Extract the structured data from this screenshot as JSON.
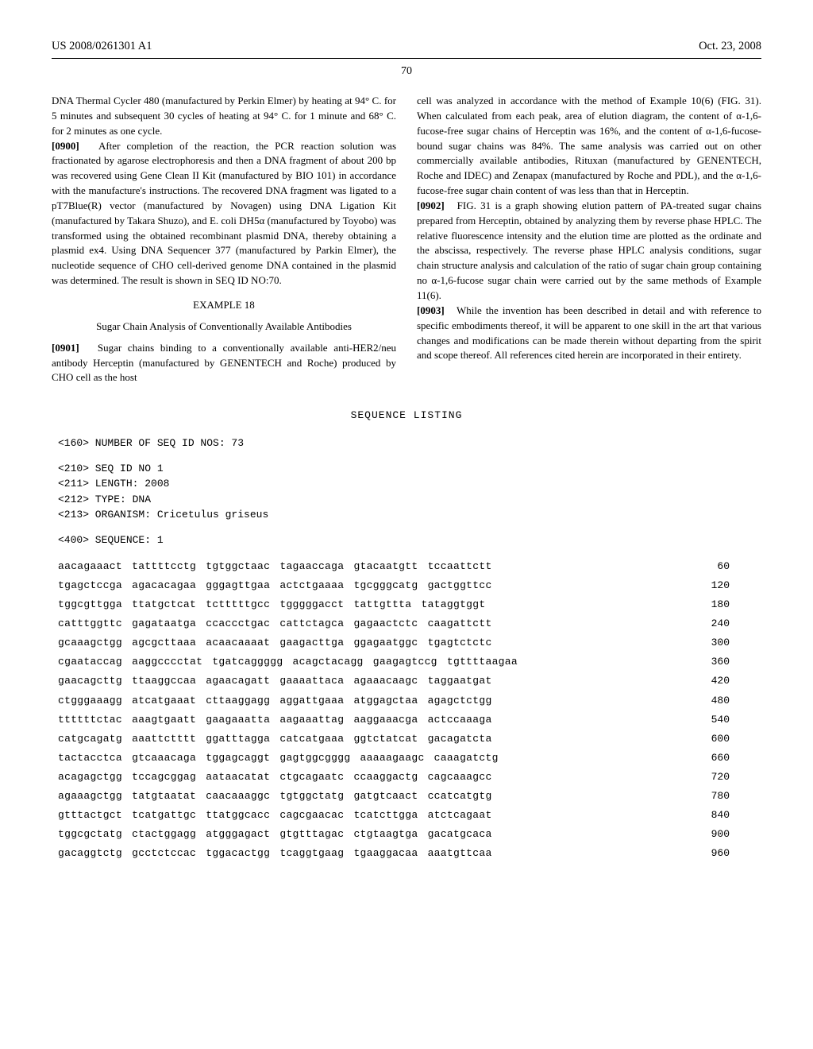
{
  "header": {
    "pub_number": "US 2008/0261301 A1",
    "pub_date": "Oct. 23, 2008"
  },
  "page_number": "70",
  "left_col": {
    "p1": "DNA Thermal Cycler 480 (manufactured by Perkin Elmer) by heating at 94° C. for 5 minutes and subsequent 30 cycles of heating at 94° C. for 1 minute and 68° C. for 2 minutes as one cycle.",
    "p2_num": "[0900]",
    "p2": "After completion of the reaction, the PCR reaction solution was fractionated by agarose electrophoresis and then a DNA fragment of about 200 bp was recovered using Gene Clean II Kit (manufactured by BIO 101) in accordance with the manufacture's instructions. The recovered DNA fragment was ligated to a pT7Blue(R) vector (manufactured by Novagen) using DNA Ligation Kit (manufactured by Takara Shuzo), and E. coli DH5α (manufactured by Toyobo) was transformed using the obtained recombinant plasmid DNA, thereby obtaining a plasmid ex4. Using DNA Sequencer 377 (manufactured by Parkin Elmer), the nucleotide sequence of CHO cell-derived genome DNA contained in the plasmid was determined. The result is shown in SEQ ID NO:70.",
    "example_heading": "EXAMPLE 18",
    "example_sub": "Sugar Chain Analysis of Conventionally Available Antibodies",
    "p3_num": "[0901]",
    "p3": "Sugar chains binding to a conventionally available anti-HER2/neu antibody Herceptin (manufactured by GENENTECH and Roche) produced by CHO cell as the host"
  },
  "right_col": {
    "p1": "cell was analyzed in accordance with the method of Example 10(6) (FIG. 31). When calculated from each peak, area of elution diagram, the content of α-1,6-fucose-free sugar chains of Herceptin was 16%, and the content of α-1,6-fucose-bound sugar chains was 84%. The same analysis was carried out on other commercially available antibodies, Rituxan (manufactured by GENENTECH, Roche and IDEC) and Zenapax (manufactured by Roche and PDL), and the α-1,6-fucose-free sugar chain content of was less than that in Herceptin.",
    "p2_num": "[0902]",
    "p2": "FIG. 31 is a graph showing elution pattern of PA-treated sugar chains prepared from Herceptin, obtained by analyzing them by reverse phase HPLC. The relative fluorescence intensity and the elution time are plotted as the ordinate and the abscissa, respectively. The reverse phase HPLC analysis conditions, sugar chain structure analysis and calculation of the ratio of sugar chain group containing no α-1,6-fucose sugar chain were carried out by the same methods of Example 11(6).",
    "p3_num": "[0903]",
    "p3": "While the invention has been described in detail and with reference to specific embodiments thereof, it will be apparent to one skill in the art that various changes and modifications can be made therein without departing from the spirit and scope thereof. All references cited herein are incorporated in their entirety."
  },
  "sequence_listing": {
    "title": "SEQUENCE LISTING",
    "meta1": "<160> NUMBER OF SEQ ID NOS: 73",
    "meta2": "<210> SEQ ID NO 1",
    "meta3": "<211> LENGTH: 2008",
    "meta4": "<212> TYPE: DNA",
    "meta5": "<213> ORGANISM: Cricetulus griseus",
    "meta6": "<400> SEQUENCE: 1",
    "lines": [
      {
        "seq": "aacagaaact tattttcctg tgtggctaac tagaaccaga gtacaatgtt tccaattctt",
        "num": "60"
      },
      {
        "seq": "tgagctccga agacacagaa gggagttgaa actctgaaaa tgcgggcatg gactggttcc",
        "num": "120"
      },
      {
        "seq": "tggcgttgga ttatgctcat tctttttgcc tgggggacct tattgttta tataggtggt",
        "num": "180"
      },
      {
        "seq": "catttggttc gagataatga ccaccctgac cattctagca gagaactctc caagattctt",
        "num": "240"
      },
      {
        "seq": "gcaaagctgg agcgcttaaa acaacaaaat gaagacttga ggagaatggc tgagtctctc",
        "num": "300"
      },
      {
        "seq": "cgaataccag aaggcccctat tgatcaggggg acagctacagg gaagagtccg tgttttaagaa",
        "num": "360"
      },
      {
        "seq": "gaacagcttg ttaaggccaa agaacagatt gaaaattaca agaaacaagc taggaatgat",
        "num": "420"
      },
      {
        "seq": "ctgggaaagg atcatgaaat cttaaggagg aggattgaaa atggagctaa agagctctgg",
        "num": "480"
      },
      {
        "seq": "ttttttctac aaagtgaatt gaagaaatta aagaaattag aaggaaacga actccaaaga",
        "num": "540"
      },
      {
        "seq": "catgcagatg aaattctttt ggatttagga catcatgaaa ggtctatcat gacagatcta",
        "num": "600"
      },
      {
        "seq": "tactacctca gtcaaacaga tggagcaggt gagtggcgggg aaaaagaagc caaagatctg",
        "num": "660"
      },
      {
        "seq": "acagagctgg tccagcggag aataacatat ctgcagaatc ccaaggactg cagcaaagcc",
        "num": "720"
      },
      {
        "seq": "agaaagctgg tatgtaatat caacaaaggc tgtggctatg gatgtcaact ccatcatgtg",
        "num": "780"
      },
      {
        "seq": "gtttactgct tcatgattgc ttatggcacc cagcgaacac tcatcttgga atctcagaat",
        "num": "840"
      },
      {
        "seq": "tggcgctatg ctactggagg atgggagact gtgtttagac ctgtaagtga gacatgcaca",
        "num": "900"
      },
      {
        "seq": "gacaggtctg gcctctccac tggacactgg tcaggtgaag tgaaggacaa aaatgttcaa",
        "num": "960"
      }
    ]
  }
}
